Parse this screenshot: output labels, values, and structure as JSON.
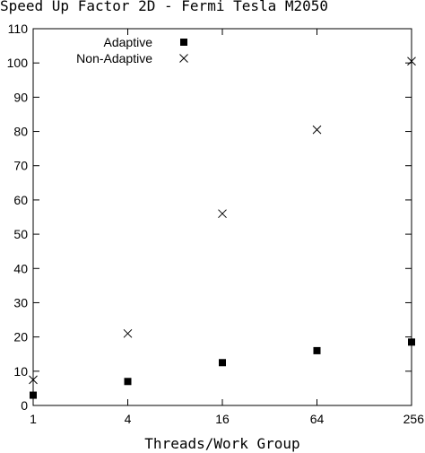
{
  "chart_data": {
    "type": "scatter",
    "title": "Speed Up Factor 2D - Fermi Tesla M2050",
    "xlabel": "Threads/Work Group",
    "ylabel": "",
    "x_scale": "log4",
    "xlim": [
      1,
      256
    ],
    "ylim": [
      0,
      110
    ],
    "x_ticks": [
      "1",
      "4",
      "16",
      "64",
      "256"
    ],
    "y_ticks": [
      "0",
      "10",
      "20",
      "30",
      "40",
      "50",
      "60",
      "70",
      "80",
      "90",
      "100",
      "110"
    ],
    "grid": false,
    "legend_position": "top-left",
    "series": [
      {
        "name": "Adaptive",
        "marker": "filled-square",
        "color": "#000000",
        "points": [
          {
            "x": 1,
            "y": 3
          },
          {
            "x": 4,
            "y": 7
          },
          {
            "x": 16,
            "y": 12.5
          },
          {
            "x": 64,
            "y": 16
          },
          {
            "x": 256,
            "y": 18.5
          }
        ]
      },
      {
        "name": "Non-Adaptive",
        "marker": "x",
        "color": "#000000",
        "points": [
          {
            "x": 1,
            "y": 7.5
          },
          {
            "x": 4,
            "y": 21
          },
          {
            "x": 16,
            "y": 56
          },
          {
            "x": 64,
            "y": 80.5
          },
          {
            "x": 256,
            "y": 100.5
          }
        ]
      }
    ]
  }
}
